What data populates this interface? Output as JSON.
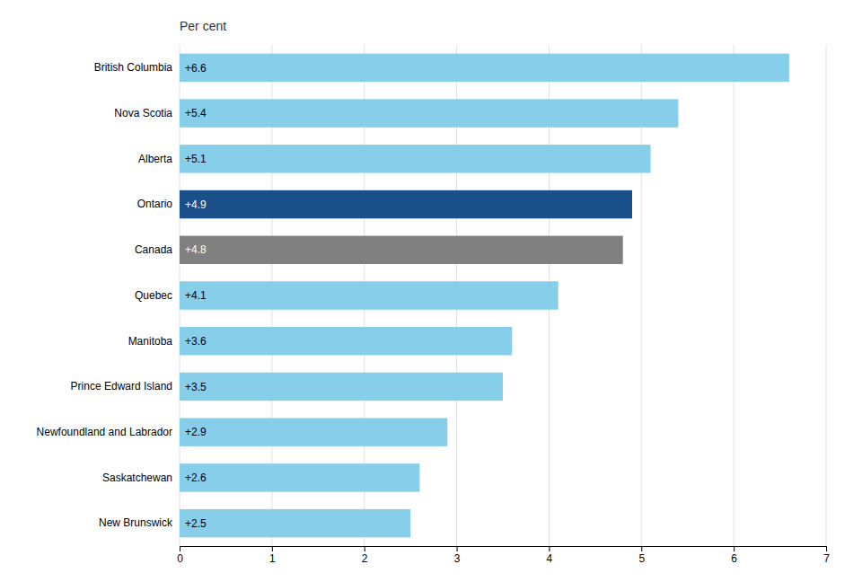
{
  "chart_data": {
    "type": "bar",
    "orientation": "horizontal",
    "title": "Per cent",
    "categories": [
      "British Columbia",
      "Nova Scotia",
      "Alberta",
      "Ontario",
      "Canada",
      "Quebec",
      "Manitoba",
      "Prince Edward Island",
      "Newfoundland and Labrador",
      "Saskatchewan",
      "New Brunswick"
    ],
    "values": [
      6.6,
      5.4,
      5.1,
      4.9,
      4.8,
      4.1,
      3.6,
      3.5,
      2.9,
      2.6,
      2.5
    ],
    "value_labels": [
      "+6.6",
      "+5.4",
      "+5.1",
      "+4.9",
      "+4.8",
      "+4.1",
      "+3.6",
      "+3.5",
      "+2.9",
      "+2.6",
      "+2.5"
    ],
    "colors": [
      "#87CEEB",
      "#87CEEB",
      "#87CEEB",
      "#1B4F8A",
      "#808080",
      "#87CEEB",
      "#87CEEB",
      "#87CEEB",
      "#87CEEB",
      "#87CEEB",
      "#87CEEB"
    ],
    "xlim": [
      0,
      7
    ],
    "xticks": [
      0,
      1,
      2,
      3,
      4,
      5,
      6,
      7
    ],
    "grid": true,
    "data_labels": true
  }
}
